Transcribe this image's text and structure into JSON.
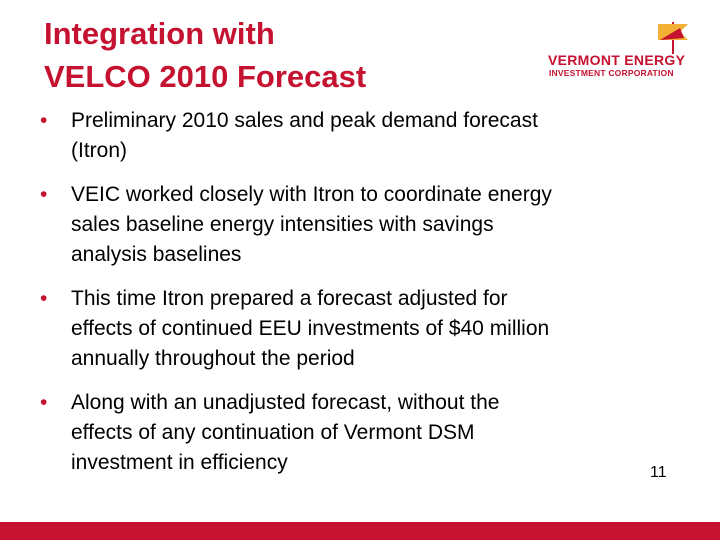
{
  "header": {
    "title_lines": [
      "Integration with",
      "VELCO 2010 Forecast"
    ],
    "logo": {
      "name": "VERMONT ENERGY",
      "subname": "INVESTMENT CORPORATION"
    }
  },
  "bullets": [
    [
      "Preliminary 2010 sales and peak demand forecast",
      "(Itron)"
    ],
    [
      "VEIC worked closely with Itron to coordinate energy",
      "sales baseline energy intensities with savings",
      "analysis baselines"
    ],
    [
      "This time Itron prepared a forecast adjusted for",
      "effects of continued EEU investments of $40 million",
      "annually throughout the period"
    ],
    [
      "Along with an unadjusted forecast, without the",
      "effects of any continuation of Vermont DSM",
      "investment in efficiency"
    ]
  ],
  "page_number": "11"
}
